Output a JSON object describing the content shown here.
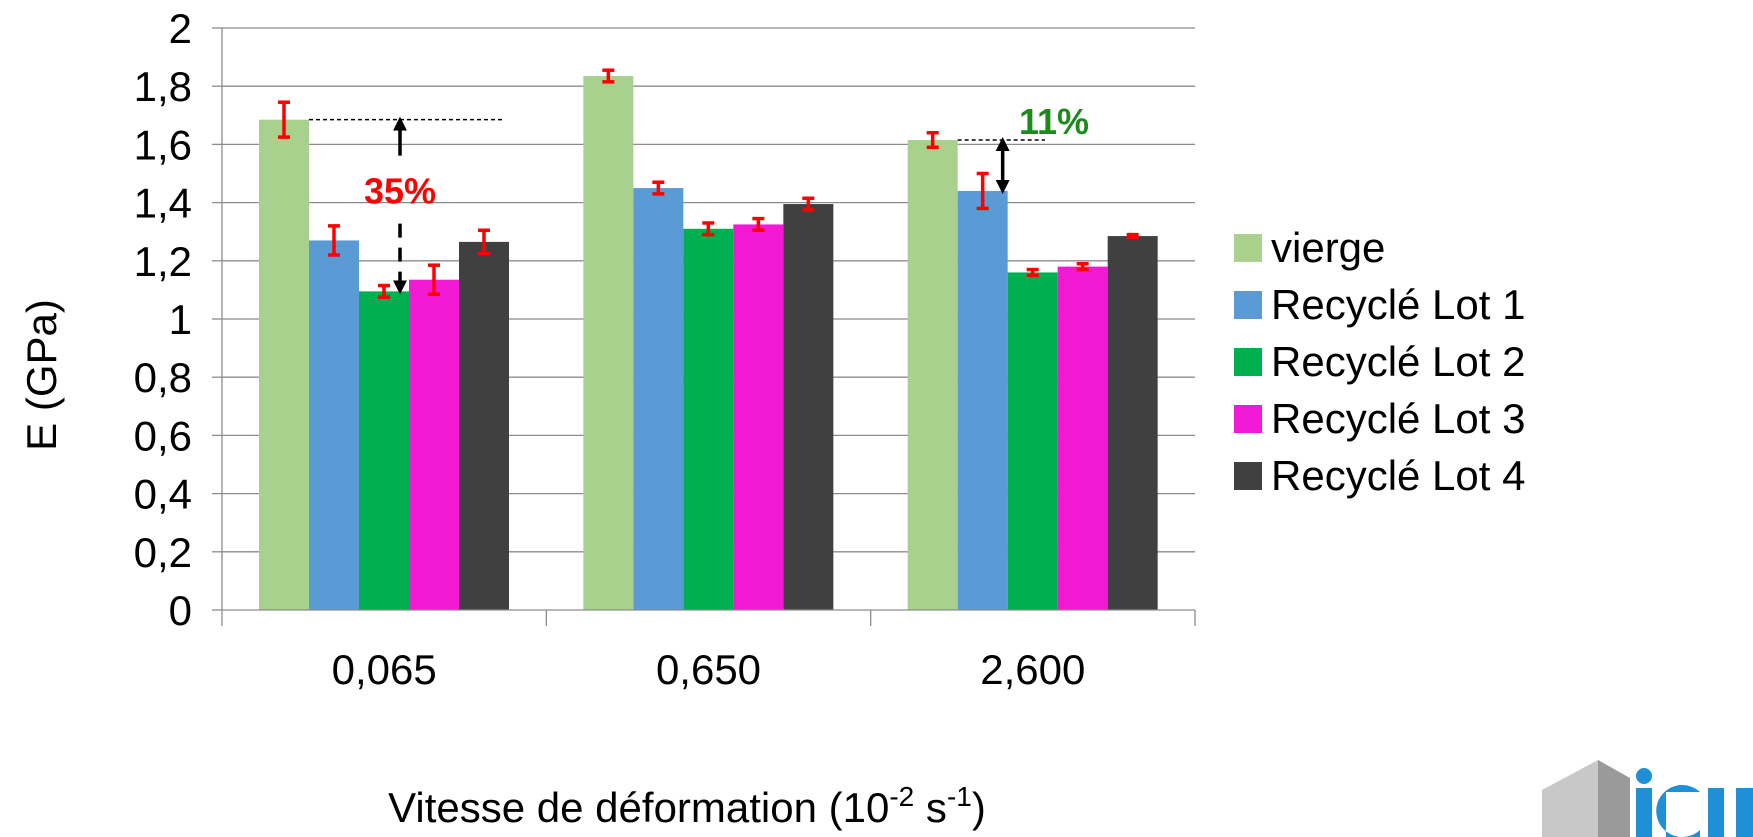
{
  "chart_data": {
    "type": "bar",
    "categories": [
      "0,065",
      "0,650",
      "2,600"
    ],
    "series": [
      {
        "name": "vierge",
        "color": "#a9d18e",
        "values": [
          1.685,
          1.835,
          1.615
        ],
        "errors": [
          0.06,
          0.02,
          0.025
        ]
      },
      {
        "name": "Recyclé Lot 1",
        "color": "#5b9bd5",
        "values": [
          1.27,
          1.45,
          1.44
        ],
        "errors": [
          0.05,
          0.02,
          0.06
        ]
      },
      {
        "name": "Recyclé Lot 2",
        "color": "#00b050",
        "values": [
          1.095,
          1.31,
          1.16
        ],
        "errors": [
          0.02,
          0.02,
          0.01
        ]
      },
      {
        "name": "Recyclé Lot 3",
        "color": "#f119d4",
        "values": [
          1.135,
          1.325,
          1.18
        ],
        "errors": [
          0.05,
          0.02,
          0.01
        ]
      },
      {
        "name": "Recyclé Lot 4",
        "color": "#404040",
        "values": [
          1.265,
          1.395,
          1.285
        ],
        "errors": [
          0.04,
          0.02,
          0.005
        ]
      }
    ],
    "ylim": [
      0,
      2
    ],
    "yticks": [
      "0",
      "0,2",
      "0,4",
      "0,6",
      "0,8",
      "1",
      "1,2",
      "1,4",
      "1,6",
      "1,8",
      "2"
    ],
    "ylabel": "E (GPa)",
    "xlabel": {
      "text": "Vitesse de déformation (10",
      "exp1": "-2",
      "mid": " s",
      "exp2": "-1",
      "end": ")"
    },
    "grid": true,
    "legend_position": "right",
    "error_bar_color": "#ff0000",
    "annotations": [
      {
        "text": "35%",
        "color": "#ff0000",
        "category": "0,065",
        "from": 1.685,
        "to": 1.095
      },
      {
        "text": "11%",
        "color": "#1e8a1e",
        "category": "2,600",
        "from": 1.615,
        "to": 1.44
      }
    ]
  }
}
